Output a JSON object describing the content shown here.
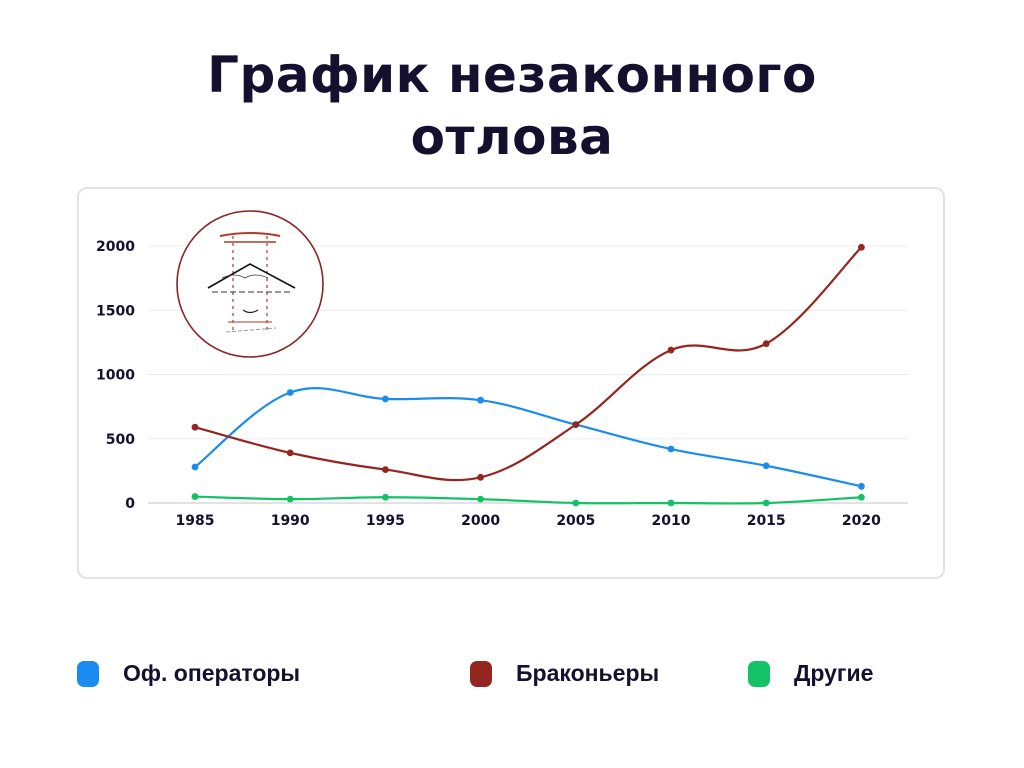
{
  "title": "График незаконного отлова",
  "title_lines": [
    "График незаконного",
    "отлова"
  ],
  "logo": {
    "description": "torii-gate-mountain-emblem",
    "border_color": "#8b2323"
  },
  "legend": [
    {
      "label": "Оф. операторы",
      "color": "#1a8cf0"
    },
    {
      "label": "Браконьеры",
      "color": "#942620"
    },
    {
      "label": "Другие",
      "color": "#12c264"
    }
  ],
  "chart_data": {
    "type": "line",
    "title": "График незаконного отлова",
    "xlabel": "",
    "ylabel": "",
    "x": [
      "1985",
      "1990",
      "1995",
      "2000",
      "2005",
      "2010",
      "2015",
      "2020"
    ],
    "yticks": [
      "0",
      "500",
      "1000",
      "1500",
      "2000"
    ],
    "ylim": [
      0,
      2000
    ],
    "grid": true,
    "smooth": true,
    "legend_position": "bottom",
    "series": [
      {
        "name": "Оф. операторы",
        "color": "#1a8cf0",
        "values": [
          280,
          860,
          810,
          800,
          610,
          420,
          290,
          130
        ]
      },
      {
        "name": "Браконьеры",
        "color": "#942620",
        "values": [
          590,
          390,
          260,
          200,
          610,
          1190,
          1240,
          1990
        ]
      },
      {
        "name": "Другие",
        "color": "#12c264",
        "values": [
          50,
          30,
          45,
          30,
          0,
          0,
          0,
          45
        ]
      }
    ]
  }
}
